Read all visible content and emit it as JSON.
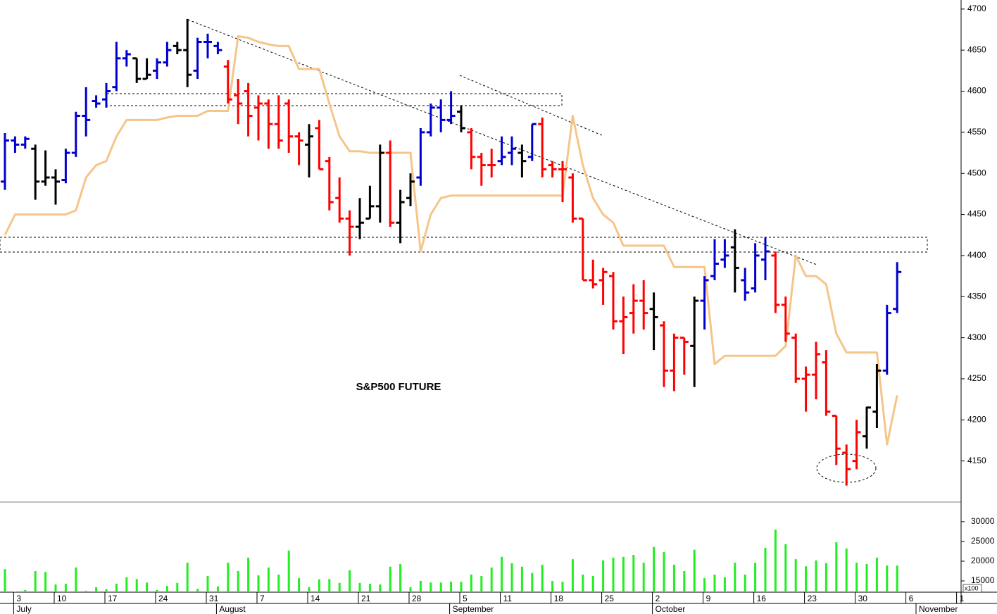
{
  "chart_data": {
    "type": "ohlc",
    "title": "S&P500 FUTURE",
    "categories": [
      null,
      "3",
      null,
      null,
      null,
      "10",
      null,
      null,
      null,
      null,
      "17",
      null,
      null,
      null,
      null,
      "24",
      null,
      null,
      null,
      null,
      "31",
      null,
      null,
      null,
      null,
      "7",
      null,
      null,
      null,
      null,
      "14",
      null,
      null,
      null,
      null,
      "21",
      null,
      null,
      null,
      null,
      "28",
      null,
      null,
      null,
      null,
      "5",
      null,
      null,
      null,
      "11",
      null,
      null,
      null,
      null,
      "18",
      null,
      null,
      null,
      null,
      "25",
      null,
      null,
      null,
      null,
      "2",
      null,
      null,
      null,
      null,
      "9",
      null,
      null,
      null,
      null,
      "16",
      null,
      null,
      null,
      null,
      "23",
      null,
      null,
      null,
      null,
      "30",
      null,
      null,
      null,
      null,
      "6",
      null,
      null,
      null,
      null,
      "1"
    ],
    "months": [
      null,
      "July",
      null,
      null,
      null,
      null,
      null,
      null,
      null,
      null,
      null,
      null,
      null,
      null,
      null,
      null,
      null,
      null,
      null,
      null,
      null,
      "August",
      null,
      null,
      null,
      null,
      null,
      null,
      null,
      null,
      null,
      null,
      null,
      null,
      null,
      null,
      null,
      null,
      null,
      null,
      null,
      null,
      null,
      null,
      "September",
      null,
      null,
      null,
      null,
      null,
      null,
      null,
      null,
      null,
      null,
      null,
      null,
      null,
      null,
      null,
      null,
      null,
      null,
      null,
      "October",
      null,
      null,
      null,
      null,
      null,
      null,
      null,
      null,
      null,
      null,
      null,
      null,
      null,
      null,
      null,
      null,
      null,
      null,
      null,
      null,
      null,
      null,
      null,
      null,
      null,
      "November",
      null,
      null,
      null,
      null,
      null,
      null,
      null,
      null
    ],
    "open": [
      4490,
      4540,
      4535,
      4530,
      4490,
      4495,
      4492,
      4525,
      4570,
      4588,
      4590,
      4605,
      4640,
      4640,
      4615,
      4625,
      4635,
      4655,
      4650,
      4625,
      4660,
      4655,
      4630,
      4595,
      4600,
      4580,
      4585,
      4560,
      4585,
      4545,
      4535,
      4555,
      4515,
      4470,
      4445,
      4435,
      4445,
      4460,
      4525,
      4440,
      4470,
      4495,
      4550,
      4580,
      4565,
      4575,
      4550,
      4520,
      4510,
      4515,
      4525,
      4525,
      4520,
      4560,
      4510,
      4505,
      4495,
      4445,
      4370,
      4370,
      4375,
      4320,
      4330,
      4345,
      4335,
      4315,
      4260,
      4300,
      4290,
      4345,
      4375,
      4395,
      4410,
      4370,
      4360,
      4395,
      4400,
      4340,
      4300,
      4250,
      4255,
      4270,
      4205,
      4160,
      4150,
      4180,
      4210,
      4260,
      4335,
      null,
      null,
      null,
      null,
      null,
      null
    ],
    "high": [
      4549,
      4545,
      4545,
      4535,
      4528,
      4505,
      4530,
      4575,
      4605,
      4595,
      4610,
      4660,
      4650,
      4640,
      4640,
      4640,
      4660,
      4660,
      4688,
      4665,
      4670,
      4660,
      4638,
      4615,
      4610,
      4595,
      4590,
      4595,
      4590,
      4550,
      4560,
      4565,
      4520,
      4495,
      4455,
      4470,
      4485,
      4535,
      4540,
      4480,
      4500,
      4555,
      4585,
      4590,
      4600,
      4583,
      4555,
      4525,
      4530,
      4545,
      4545,
      4535,
      4560,
      4568,
      4515,
      4515,
      4500,
      4445,
      4395,
      4385,
      4380,
      4350,
      4365,
      4370,
      4355,
      4320,
      4305,
      4300,
      4350,
      4375,
      4420,
      4420,
      4432,
      4385,
      4415,
      4422,
      4405,
      4350,
      4305,
      4265,
      4295,
      4285,
      4205,
      4170,
      4200,
      4216,
      4268,
      4340,
      4392,
      null,
      null,
      null,
      null,
      null,
      null
    ],
    "low": [
      4480,
      4525,
      4530,
      4468,
      4485,
      4462,
      4488,
      4520,
      4545,
      4580,
      4580,
      4600,
      4630,
      4610,
      4615,
      4615,
      4630,
      4645,
      4605,
      4615,
      4640,
      4645,
      4585,
      4560,
      4545,
      4540,
      4530,
      4530,
      4525,
      4510,
      4495,
      4505,
      4455,
      4440,
      4400,
      4420,
      4445,
      4440,
      4435,
      4415,
      4460,
      4485,
      4545,
      4550,
      4560,
      4550,
      4505,
      4485,
      4495,
      4510,
      4510,
      4495,
      4515,
      4495,
      4495,
      4465,
      4440,
      4370,
      4360,
      4340,
      4310,
      4280,
      4305,
      4310,
      4285,
      4240,
      4235,
      4255,
      4240,
      4310,
      4370,
      4385,
      4355,
      4345,
      4355,
      4370,
      4330,
      4295,
      4245,
      4210,
      4225,
      4205,
      4145,
      4120,
      4140,
      4165,
      4190,
      4255,
      4330,
      null,
      null,
      null,
      null,
      null,
      null
    ],
    "close": [
      4540,
      4535,
      4542,
      4490,
      4495,
      4490,
      4525,
      4570,
      4565,
      4585,
      4600,
      4640,
      4645,
      4615,
      4620,
      4635,
      4650,
      4650,
      4620,
      4660,
      4660,
      4650,
      4590,
      4585,
      4570,
      4585,
      4560,
      4540,
      4545,
      4540,
      4545,
      4505,
      4465,
      4445,
      4435,
      4440,
      4460,
      4525,
      4440,
      4465,
      4490,
      4550,
      4580,
      4565,
      4570,
      4555,
      4520,
      4510,
      4510,
      4520,
      4530,
      4515,
      4560,
      4505,
      4505,
      4505,
      4445,
      4370,
      4365,
      4380,
      4320,
      4325,
      4345,
      4330,
      4325,
      4260,
      4300,
      4295,
      4345,
      4370,
      4390,
      4400,
      4385,
      4355,
      4400,
      4405,
      4340,
      4305,
      4250,
      4255,
      4280,
      4210,
      4165,
      4140,
      4185,
      4215,
      4260,
      4330,
      4380,
      null,
      null,
      null,
      null,
      null,
      null
    ],
    "bar_colors": [
      "#0000cc",
      "#0000cc",
      "#0000cc",
      "#000000",
      "#000000",
      "#000000",
      "#0000cc",
      "#0000cc",
      "#0000cc",
      "#0000cc",
      "#0000cc",
      "#0000cc",
      "#0000cc",
      "#000000",
      "#000000",
      "#0000cc",
      "#0000cc",
      "#000000",
      "#000000",
      "#0000cc",
      "#0000cc",
      "#0000cc",
      "#ff0000",
      "#ff0000",
      "#ff0000",
      "#ff0000",
      "#ff0000",
      "#ff0000",
      "#ff0000",
      "#ff0000",
      "#000000",
      "#ff0000",
      "#ff0000",
      "#ff0000",
      "#ff0000",
      "#000000",
      "#000000",
      "#000000",
      "#ff0000",
      "#000000",
      "#000000",
      "#0000cc",
      "#0000cc",
      "#0000cc",
      "#0000cc",
      "#000000",
      "#ff0000",
      "#ff0000",
      "#ff0000",
      "#0000cc",
      "#0000cc",
      "#000000",
      "#0000cc",
      "#ff0000",
      "#ff0000",
      "#ff0000",
      "#ff0000",
      "#ff0000",
      "#ff0000",
      "#ff0000",
      "#ff0000",
      "#ff0000",
      "#ff0000",
      "#ff0000",
      "#000000",
      "#ff0000",
      "#ff0000",
      "#ff0000",
      "#000000",
      "#0000cc",
      "#0000cc",
      "#0000cc",
      "#000000",
      "#0000cc",
      "#0000cc",
      "#0000cc",
      "#ff0000",
      "#ff0000",
      "#ff0000",
      "#ff0000",
      "#ff0000",
      "#ff0000",
      "#ff0000",
      "#ff0000",
      "#ff0000",
      "#000000",
      "#000000",
      "#0000cc",
      "#0000cc",
      null,
      null,
      null,
      null,
      null,
      null
    ],
    "line": {
      "color": "#f5c58a",
      "values": [
        4425,
        4450,
        4450,
        4450,
        4450,
        4450,
        4450,
        4455,
        4495,
        4510,
        4515,
        4545,
        4565,
        4565,
        4565,
        4565,
        4568,
        4570,
        4570,
        4570,
        4576,
        4576,
        4576,
        4667,
        4665,
        4660,
        4657,
        4655,
        4655,
        4627,
        4627,
        4627,
        4585,
        4545,
        4527,
        4527,
        4525,
        4525,
        4525,
        4525,
        4525,
        4405,
        4450,
        4470,
        4473,
        4473,
        4473,
        4473,
        4473,
        4473,
        4473,
        4473,
        4473,
        4473,
        4473,
        4473,
        4570,
        4510,
        4470,
        4450,
        4440,
        4412,
        4412,
        4412,
        4412,
        4412,
        4386,
        4386,
        4386,
        4386,
        4268,
        4278,
        4278,
        4278,
        4278,
        4278,
        4278,
        4290,
        4400,
        4375,
        4375,
        4365,
        4305,
        4282,
        4282,
        4282,
        4282,
        4170,
        4230,
        null,
        null,
        null,
        null,
        null,
        null
      ]
    },
    "ylim": [
      4100,
      4711
    ],
    "yticks": [
      4150,
      4200,
      4250,
      4300,
      4350,
      4400,
      4450,
      4500,
      4550,
      4600,
      4650,
      4700
    ],
    "volume": {
      "color": "#22ee22",
      "unit_label": "x100",
      "values": [
        18000,
        12300,
        12700,
        17500,
        17300,
        14100,
        14300,
        18400,
        12500,
        13400,
        12900,
        14300,
        15900,
        15500,
        14600,
        12700,
        13700,
        14500,
        19600,
        13000,
        16250,
        13600,
        19600,
        17500,
        20900,
        16400,
        18400,
        16600,
        22700,
        15700,
        13400,
        15400,
        15500,
        14500,
        17700,
        14500,
        14300,
        14100,
        18600,
        19300,
        13400,
        15000,
        14600,
        14600,
        14800,
        14800,
        16600,
        16250,
        18400,
        21100,
        19500,
        18600,
        17000,
        19100,
        15000,
        14800,
        20500,
        16600,
        16250,
        20200,
        20900,
        21100,
        21600,
        19600,
        23600,
        22300,
        19100,
        17500,
        22900,
        15700,
        16600,
        15900,
        19600,
        16600,
        19600,
        23400,
        28000,
        24300,
        20500,
        18700,
        20200,
        19500,
        24800,
        23200,
        19600,
        19300,
        20900,
        18900,
        18900,
        null,
        null,
        null,
        null,
        null,
        null
      ],
      "ylim": [
        12150,
        34800
      ],
      "yticks": [
        15000,
        20000,
        25000,
        30000
      ]
    }
  }
}
